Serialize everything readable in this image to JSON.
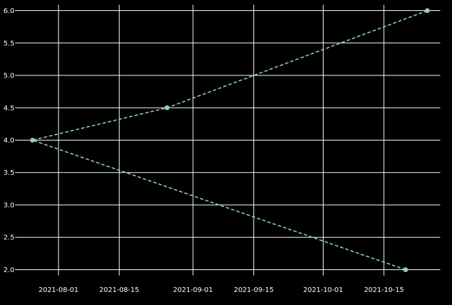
{
  "chart_data": {
    "type": "line",
    "x_type": "date",
    "xlim": [
      "2021-07-22",
      "2021-10-28"
    ],
    "ylim": [
      1.91,
      6.09
    ],
    "x_ticks": [
      "2021-08-01",
      "2021-08-15",
      "2021-09-01",
      "2021-09-15",
      "2021-10-01",
      "2021-10-15"
    ],
    "y_ticks": [
      "2.0",
      "2.5",
      "3.0",
      "3.5",
      "4.0",
      "4.5",
      "5.0",
      "5.5",
      "6.0"
    ],
    "grid": true,
    "background": "#000000",
    "series_color": "#8fcfbf",
    "line_style": "dashed",
    "marker": "circle",
    "points": [
      {
        "x": "2021-10-20",
        "y": 2.0
      },
      {
        "x": "2021-07-26",
        "y": 4.0
      },
      {
        "x": "2021-08-26",
        "y": 4.5
      },
      {
        "x": "2021-10-25",
        "y": 6.0
      }
    ]
  }
}
